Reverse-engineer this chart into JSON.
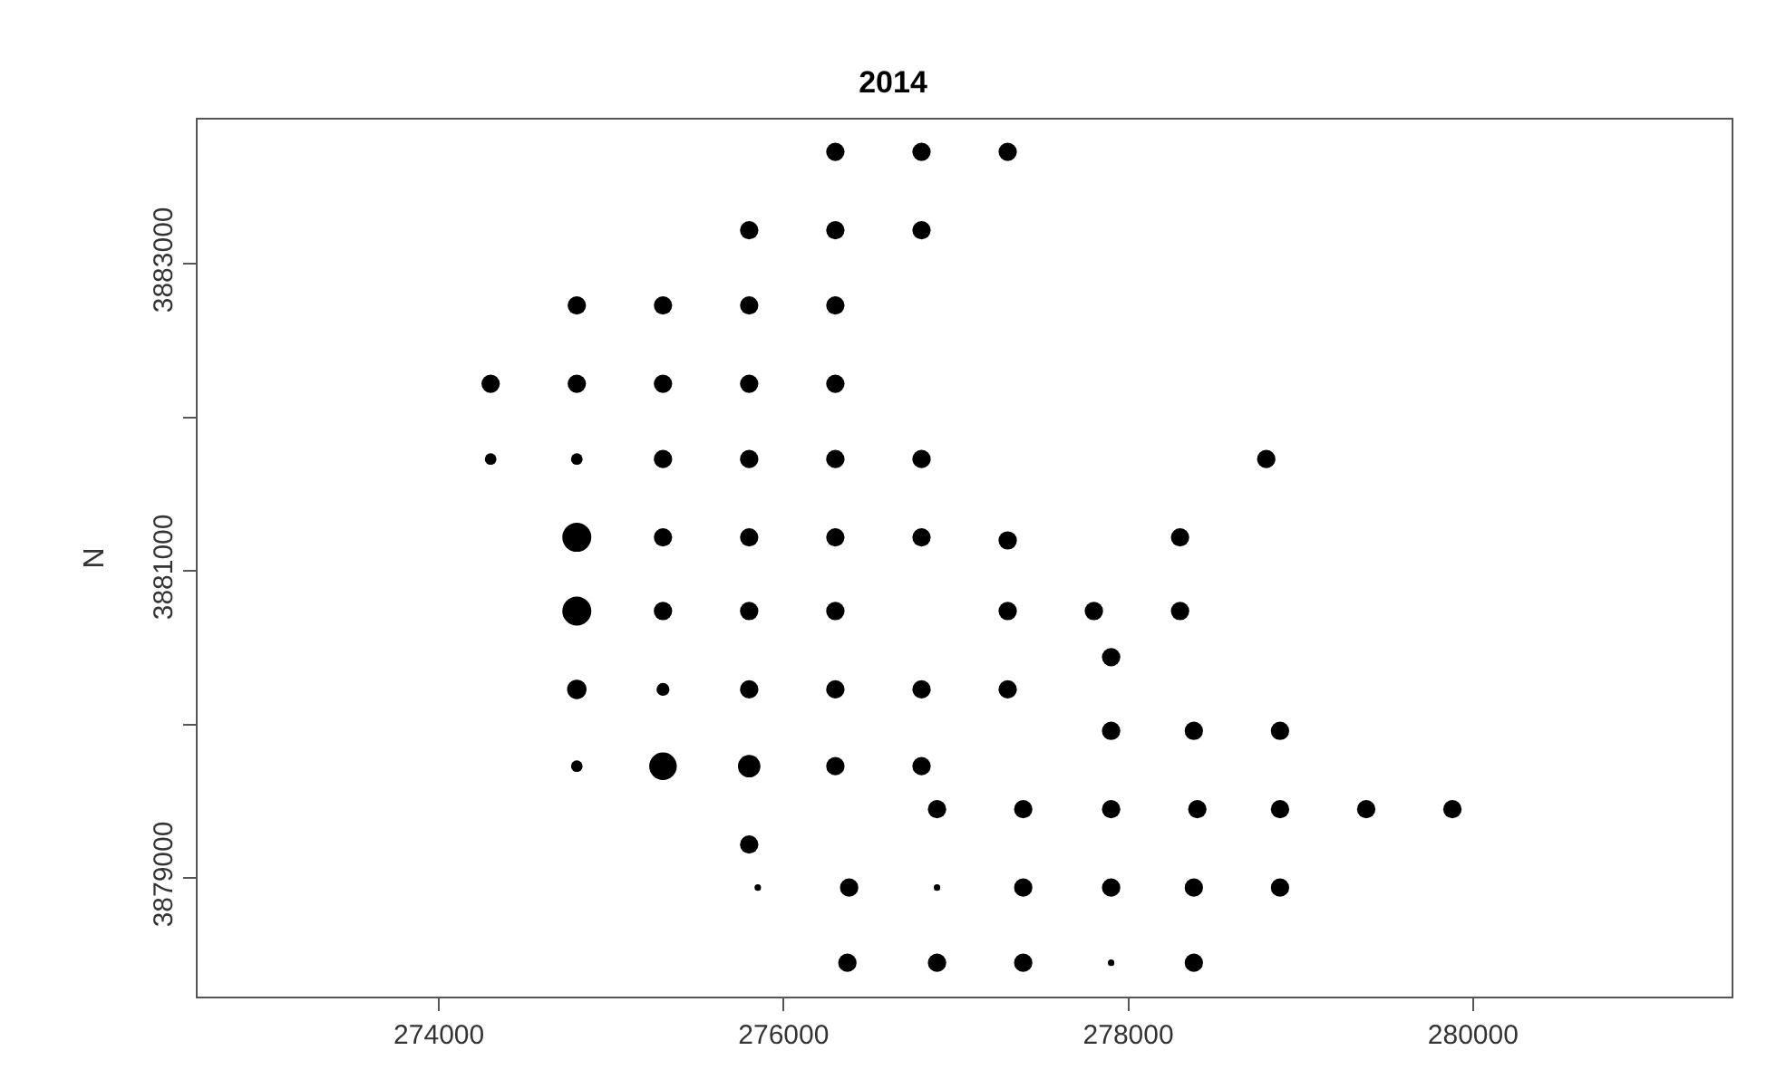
{
  "chart_data": {
    "type": "bubble",
    "title": "2014",
    "ylabel": "N",
    "color": "#000000",
    "marker": "circle",
    "xlim": [
      272600,
      281500
    ],
    "xticks": [
      274000,
      276000,
      278000,
      280000
    ],
    "ylim": [
      3878230,
      3883940
    ],
    "yticks": [
      3879000,
      {
        "value": 3880000,
        "label": null
      },
      3881000,
      {
        "value": 3882000,
        "label": null
      },
      3883000
    ],
    "x": [
      276300,
      276800,
      277300,
      275800,
      276300,
      276800,
      274800,
      275300,
      275800,
      276300,
      274300,
      274800,
      275300,
      275800,
      276300,
      274300,
      274800,
      275300,
      275800,
      276300,
      276800,
      278800,
      274800,
      275300,
      275800,
      276300,
      276800,
      277300,
      278300,
      274800,
      275300,
      275800,
      276300,
      277300,
      277800,
      278300,
      277900,
      274800,
      275300,
      275800,
      276300,
      276800,
      277300,
      277900,
      278380,
      278880,
      274800,
      275300,
      275800,
      276300,
      276800,
      276890,
      277390,
      277900,
      278400,
      278880,
      279380,
      279880,
      275800,
      275850,
      276380,
      276890,
      277390,
      277900,
      278380,
      278880,
      276370,
      276890,
      277390,
      277900,
      278380
    ],
    "values": [
      3883730,
      3883730,
      3883730,
      3883220,
      3883220,
      3883220,
      3882730,
      3882730,
      3882730,
      3882730,
      3882220,
      3882220,
      3882220,
      3882220,
      3882220,
      3881730,
      3881730,
      3881730,
      3881730,
      3881730,
      3881730,
      3881730,
      3881220,
      3881220,
      3881220,
      3881220,
      3881220,
      3881200,
      3881220,
      3880740,
      3880740,
      3880740,
      3880740,
      3880740,
      3880740,
      3880740,
      3880440,
      3880230,
      3880230,
      3880230,
      3880230,
      3880230,
      3880230,
      3879960,
      3879960,
      3879960,
      3879730,
      3879730,
      3879730,
      3879730,
      3879730,
      3879450,
      3879450,
      3879450,
      3879450,
      3879450,
      3879450,
      3879450,
      3879220,
      3878940,
      3878940,
      3878940,
      3878940,
      3878940,
      3878940,
      3878940,
      3878450,
      3878450,
      3878450,
      3878450,
      3878450
    ],
    "sizes": [
      0.4,
      0.4,
      0.4,
      0.4,
      0.4,
      0.4,
      0.4,
      0.4,
      0.4,
      0.4,
      0.4,
      0.4,
      0.4,
      0.4,
      0.4,
      0.16,
      0.16,
      0.4,
      0.4,
      0.4,
      0.4,
      0.4,
      1,
      0.4,
      0.4,
      0.4,
      0.4,
      0.4,
      0.4,
      1,
      0.4,
      0.4,
      0.4,
      0.4,
      0.4,
      0.4,
      0.4,
      0.45,
      0.2,
      0.4,
      0.4,
      0.4,
      0.4,
      0.4,
      0.4,
      0.4,
      0.16,
      0.9,
      0.6,
      0.4,
      0.4,
      0.4,
      0.4,
      0.4,
      0.4,
      0.4,
      0.4,
      0.4,
      0.4,
      0.05,
      0.4,
      0.05,
      0.4,
      0.4,
      0.4,
      0.4,
      0.4,
      0.4,
      0.4,
      0.05,
      0.4
    ]
  }
}
